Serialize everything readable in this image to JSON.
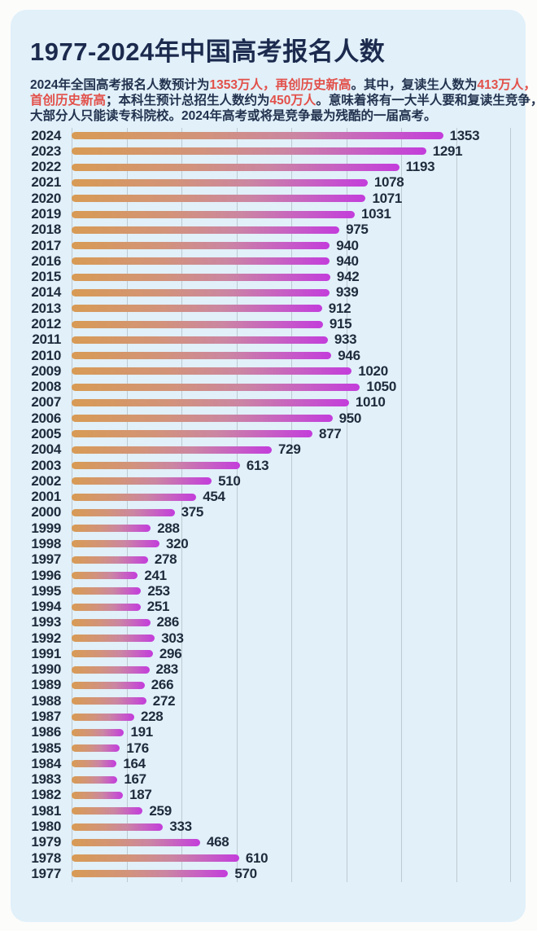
{
  "header": {
    "title": "1977-2024年中国高考报名人数"
  },
  "subtitle": {
    "lines": [
      [
        {
          "text": "2024年全国高考报名人数预计为",
          "red": false
        },
        {
          "text": "1353万人，再创历史新高",
          "red": true
        },
        {
          "text": "。其中，复读生人数为",
          "red": false
        },
        {
          "text": "413万人，",
          "red": true
        }
      ],
      [
        {
          "text": "首创历史新高",
          "red": true
        },
        {
          "text": "；本科生预计总招生人数约为",
          "red": false
        },
        {
          "text": "450万人",
          "red": true
        },
        {
          "text": "。意味着将有一大半人要和复读生竞争，",
          "red": false
        }
      ],
      [
        {
          "text": "大部分人只能读专科院校。2024年高考或将是竞争最为残酷的一届高考。",
          "red": false
        }
      ]
    ]
  },
  "chart_data": {
    "type": "bar",
    "orientation": "horizontal",
    "title": "1977-2024年中国高考报名人数",
    "categories": [
      "2024",
      "2023",
      "2022",
      "2021",
      "2020",
      "2019",
      "2018",
      "2017",
      "2016",
      "2015",
      "2014",
      "2013",
      "2012",
      "2011",
      "2010",
      "2009",
      "2008",
      "2007",
      "2006",
      "2005",
      "2004",
      "2003",
      "2002",
      "2001",
      "2000",
      "1999",
      "1998",
      "1997",
      "1996",
      "1995",
      "1994",
      "1993",
      "1992",
      "1991",
      "1990",
      "1989",
      "1988",
      "1987",
      "1986",
      "1985",
      "1984",
      "1983",
      "1982",
      "1981",
      "1980",
      "1979",
      "1978",
      "1977"
    ],
    "values": [
      1353,
      1291,
      1193,
      1078,
      1071,
      1031,
      975,
      940,
      940,
      942,
      939,
      912,
      915,
      933,
      946,
      1020,
      1050,
      1010,
      950,
      877,
      729,
      613,
      510,
      454,
      375,
      288,
      320,
      278,
      241,
      253,
      251,
      286,
      303,
      296,
      283,
      266,
      272,
      228,
      191,
      176,
      164,
      167,
      187,
      259,
      333,
      468,
      610,
      570
    ],
    "value_labels": true,
    "xlim": [
      0,
      1600
    ],
    "gridline_interval": 200,
    "legend": "none",
    "xlabel": "",
    "ylabel": ""
  },
  "colors": {
    "page_bg": "#fcfcfb",
    "card_bg": "#e1f0f9",
    "title_color": "#1c2a4e",
    "text_color": "#22324e",
    "highlight_red": "#e2504a",
    "gridline_color": "#bfcad2",
    "bar_gradient": [
      "#d89b54",
      "#d2937a",
      "#cb86a2",
      "#c75fc4",
      "#c33ddb"
    ]
  }
}
